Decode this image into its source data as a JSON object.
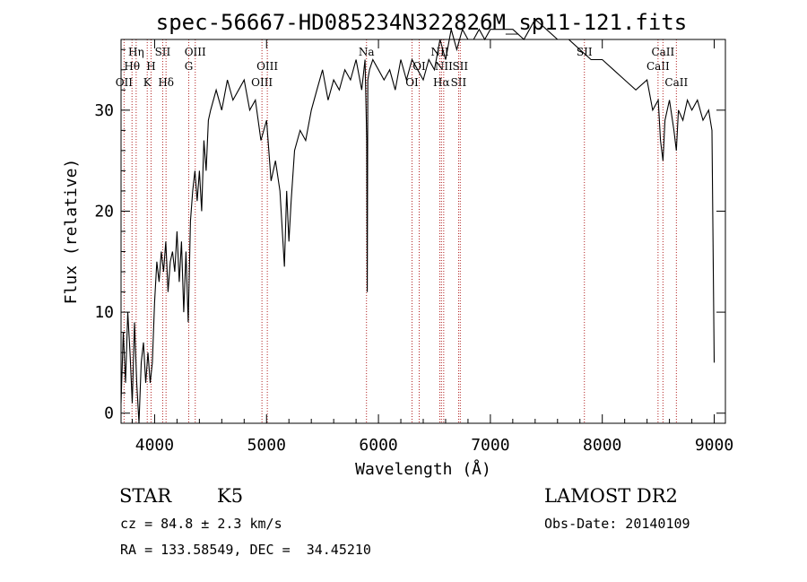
{
  "chart_data": {
    "type": "line",
    "title": "spec-56667-HD085234N322826M_sp11-121.fits",
    "xlabel": "Wavelength (Å)",
    "ylabel": "Flux (relative)",
    "xlim": [
      3700,
      9100
    ],
    "ylim": [
      -1,
      37
    ],
    "xticks": [
      4000,
      5000,
      6000,
      7000,
      8000,
      9000
    ],
    "yticks": [
      0,
      10,
      20,
      30
    ],
    "grid": false,
    "line_color": "#000000",
    "marker_color": "#b22222",
    "series": [
      {
        "x": [
          3700,
          3720,
          3740,
          3760,
          3780,
          3800,
          3820,
          3840,
          3860,
          3880,
          3900,
          3920,
          3940,
          3960,
          3980,
          4000,
          4020,
          4040,
          4060,
          4080,
          4100,
          4120,
          4140,
          4160,
          4180,
          4200,
          4220,
          4240,
          4260,
          4280,
          4300,
          4320,
          4340,
          4360,
          4380,
          4400,
          4420,
          4440,
          4460,
          4480,
          4500,
          4550,
          4600,
          4650,
          4700,
          4750,
          4800,
          4850,
          4900,
          4950,
          5000,
          5040,
          5080,
          5120,
          5160,
          5180,
          5200,
          5220,
          5250,
          5300,
          5350,
          5400,
          5450,
          5500,
          5550,
          5600,
          5650,
          5700,
          5750,
          5800,
          5850,
          5880,
          5895,
          5900,
          5905,
          5920,
          5950,
          6000,
          6050,
          6100,
          6150,
          6200,
          6250,
          6300,
          6350,
          6400,
          6450,
          6500,
          6550,
          6600,
          6650,
          6700,
          6750,
          6800,
          6850,
          6900,
          6950,
          7000,
          7100,
          7200,
          7300,
          7350,
          7400,
          7500,
          7600,
          7700,
          7800,
          7900,
          8000,
          8100,
          8200,
          8300,
          8400,
          8450,
          8500,
          8520,
          8542,
          8560,
          8600,
          8640,
          8662,
          8680,
          8720,
          8760,
          8800,
          8850,
          8900,
          8950,
          8980,
          9000
        ],
        "y": [
          1,
          8,
          3,
          10,
          6,
          1,
          9,
          3,
          -1,
          5,
          7,
          3,
          6,
          3,
          5,
          11,
          15,
          13,
          16,
          14,
          17,
          12,
          15,
          16,
          14,
          18,
          13,
          17,
          10,
          16,
          9,
          19,
          22,
          24,
          21,
          24,
          20,
          27,
          24,
          29,
          30,
          32,
          30,
          33,
          31,
          32,
          33,
          30,
          31,
          27,
          29,
          23,
          25,
          22,
          14.5,
          22,
          17,
          21,
          26,
          28,
          27,
          30,
          32,
          34,
          31,
          33,
          32,
          34,
          33,
          35,
          32,
          35,
          27,
          12,
          33,
          34,
          35,
          34,
          33,
          34,
          32,
          35,
          33,
          35,
          34,
          33,
          35,
          34,
          37,
          35,
          38,
          36,
          38,
          37,
          37,
          38,
          37,
          38,
          38,
          38,
          37,
          38,
          39,
          38,
          37,
          37,
          36,
          35,
          35,
          34,
          33,
          32,
          33,
          30,
          31,
          27,
          25,
          29,
          31,
          28,
          26,
          30,
          29,
          31,
          30,
          31,
          29,
          30,
          28,
          5
        ]
      }
    ],
    "line_markers": {
      "lines": [
        {
          "label": "OII",
          "wave": 3727,
          "row": 3
        },
        {
          "label": "Hθ",
          "wave": 3798,
          "row": 2
        },
        {
          "label": "Hη",
          "wave": 3835,
          "row": 1
        },
        {
          "label": "K",
          "wave": 3934,
          "row": 3
        },
        {
          "label": "H",
          "wave": 3968,
          "row": 2
        },
        {
          "label": "SII",
          "wave": 4072,
          "row": 1
        },
        {
          "label": "Hδ",
          "wave": 4102,
          "row": 3
        },
        {
          "label": "OIII",
          "wave": 4363,
          "row": 1
        },
        {
          "label": "G",
          "wave": 4305,
          "row": 2
        },
        {
          "label": "OIII",
          "wave": 4959,
          "row": 3
        },
        {
          "label": "OIII",
          "wave": 5007,
          "row": 2
        },
        {
          "label": "Na",
          "wave": 5893,
          "row": 1
        },
        {
          "label": "OI",
          "wave": 6300,
          "row": 3
        },
        {
          "label": "OI",
          "wave": 6364,
          "row": 2
        },
        {
          "label": "NII",
          "wave": 6548,
          "row": 1
        },
        {
          "label": "Hα",
          "wave": 6563,
          "row": 3
        },
        {
          "label": "NII",
          "wave": 6583,
          "row": 2
        },
        {
          "label": "SII",
          "wave": 6716,
          "row": 3
        },
        {
          "label": "SII",
          "wave": 6731,
          "row": 2
        },
        {
          "label": "SII",
          "wave": 7840,
          "row": 1
        },
        {
          "label": "CaII",
          "wave": 8498,
          "row": 2
        },
        {
          "label": "CaII",
          "wave": 8542,
          "row": 1
        },
        {
          "label": "CaII",
          "wave": 8662,
          "row": 3
        }
      ]
    }
  },
  "info": {
    "class_label": "STAR",
    "subclass_label": "K5",
    "cz_line": "cz = 84.8 ± 2.3 km/s",
    "coords_line": "RA = 133.58549, DEC =  34.45210",
    "survey_label": "LAMOST DR2",
    "obs_date_line": "Obs-Date: 20140109"
  }
}
